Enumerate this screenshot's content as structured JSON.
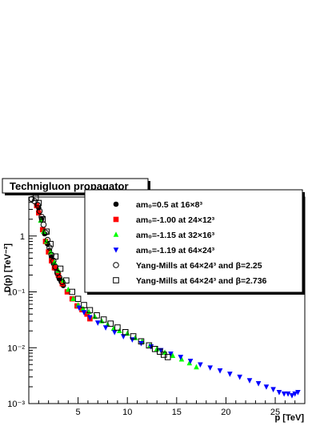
{
  "chart_data": {
    "type": "scatter",
    "title": "Technigluon propagator",
    "xlabel": "p [TeV]",
    "ylabel": "D(p) [TeV⁻²]",
    "xlim": [
      0,
      28
    ],
    "ylim": [
      0.001,
      5
    ],
    "yscale": "log",
    "grid": false,
    "legend_position": "top-right",
    "x_ticks": [
      5,
      10,
      15,
      20,
      25
    ],
    "y_ticks": [
      {
        "value": 0.001,
        "label": "10⁻³"
      },
      {
        "value": 0.01,
        "label": "10⁻²"
      },
      {
        "value": 0.1,
        "label": "10⁻¹"
      },
      {
        "value": 1,
        "label": "1"
      }
    ],
    "series": [
      {
        "name": "am₀=0.5 at 16×8³",
        "marker": "filled-circle",
        "color": "#000000",
        "x": [
          1.0,
          1.3,
          1.6,
          1.9,
          2.1,
          2.3,
          2.5,
          2.7,
          2.9,
          3.1,
          3.3,
          3.5
        ],
        "y": [
          3.2,
          2.0,
          1.1,
          0.72,
          0.55,
          0.42,
          0.32,
          0.26,
          0.21,
          0.17,
          0.15,
          0.13
        ]
      },
      {
        "name": "am₀=-1.00 at 24×12³",
        "marker": "filled-square",
        "color": "#ff0000",
        "x": [
          0.8,
          1.0,
          1.4,
          1.7,
          2.0,
          2.3,
          2.6,
          3.0,
          3.4,
          3.9,
          4.4,
          4.9,
          5.4,
          5.9,
          6.2
        ],
        "y": [
          3.5,
          2.6,
          1.3,
          0.8,
          0.52,
          0.36,
          0.27,
          0.2,
          0.14,
          0.1,
          0.075,
          0.056,
          0.048,
          0.04,
          0.033
        ]
      },
      {
        "name": "am₀=-1.15 at 32×16³",
        "marker": "filled-triangle-up",
        "color": "#00ff00",
        "x": [
          1.2,
          1.5,
          1.8,
          2.2,
          2.6,
          3.0,
          3.5,
          4.0,
          4.5,
          5.0,
          5.5,
          6.1,
          6.7,
          7.4,
          8.0,
          8.6,
          9.2,
          10.0,
          10.8,
          11.5,
          12.3,
          13.0,
          13.8,
          14.6,
          15.5,
          16.3,
          17.0
        ],
        "y": [
          1.9,
          1.2,
          0.8,
          0.52,
          0.34,
          0.24,
          0.16,
          0.11,
          0.075,
          0.058,
          0.05,
          0.044,
          0.036,
          0.03,
          0.026,
          0.022,
          0.02,
          0.018,
          0.015,
          0.013,
          0.011,
          0.0095,
          0.0082,
          0.0072,
          0.0062,
          0.0053,
          0.0045
        ]
      },
      {
        "name": "am₀=-1.19 at 64×24³",
        "marker": "filled-triangle-down",
        "color": "#0000ff",
        "x": [
          5.1,
          5.6,
          6.2,
          7.0,
          7.8,
          8.7,
          9.6,
          10.5,
          11.4,
          12.4,
          13.4,
          14.4,
          15.4,
          16.4,
          17.4,
          18.4,
          19.4,
          20.4,
          21.4,
          22.4,
          23.3,
          24.1,
          24.8,
          25.4,
          25.9,
          26.3,
          26.7,
          27.0,
          27.3
        ],
        "y": [
          0.052,
          0.043,
          0.035,
          0.028,
          0.023,
          0.019,
          0.016,
          0.014,
          0.012,
          0.0105,
          0.009,
          0.0078,
          0.0068,
          0.0058,
          0.005,
          0.0044,
          0.0039,
          0.0034,
          0.003,
          0.0026,
          0.0023,
          0.002,
          0.0018,
          0.0016,
          0.0015,
          0.0015,
          0.0014,
          0.0015,
          0.0016
        ]
      },
      {
        "name": "Yang-Mills at 64×24³ and β=2.25",
        "marker": "open-circle",
        "color": "#000000",
        "x": [
          0.3,
          0.6,
          0.9,
          1.1,
          1.3,
          1.5,
          1.7,
          1.9,
          2.1,
          2.3,
          2.5,
          2.7,
          2.9,
          3.1,
          3.4
        ],
        "y": [
          4.6,
          4.2,
          3.6,
          2.8,
          2.2,
          1.6,
          1.15,
          0.85,
          0.62,
          0.46,
          0.36,
          0.28,
          0.22,
          0.18,
          0.15
        ]
      },
      {
        "name": "Yang-Mills at 64×24³ and β=2.736",
        "marker": "open-square",
        "color": "#000000",
        "x": [
          0.7,
          1.0,
          1.4,
          1.8,
          2.2,
          2.7,
          3.2,
          3.8,
          4.4,
          5.0,
          5.6,
          6.2,
          6.9,
          7.6,
          8.3,
          9.0,
          9.8,
          10.6,
          11.4,
          12.2,
          12.8,
          13.3,
          13.7,
          14.1
        ],
        "y": [
          4.8,
          3.9,
          2.0,
          1.2,
          0.72,
          0.43,
          0.26,
          0.16,
          0.1,
          0.075,
          0.058,
          0.047,
          0.038,
          0.032,
          0.027,
          0.023,
          0.019,
          0.016,
          0.013,
          0.011,
          0.0095,
          0.0085,
          0.0075,
          0.0068
        ]
      }
    ]
  }
}
